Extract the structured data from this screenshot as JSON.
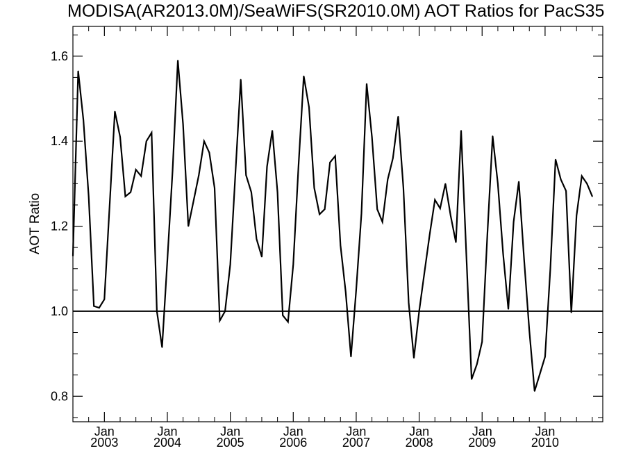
{
  "chart_data": {
    "type": "line",
    "title": "MODISA(AR2013.0M)/SeaWiFS(SR2010.0M)  AOT Ratios for PacS35",
    "xlabel": "",
    "ylabel": "AOT Ratio",
    "xlim": [
      "2002-07",
      "2010-12"
    ],
    "ylim": [
      0.74,
      1.67
    ],
    "y_ticks": [
      0.8,
      1.0,
      1.2,
      1.4,
      1.6
    ],
    "y_tick_labels": [
      "0.8",
      "1.0",
      "1.2",
      "1.4",
      "1.6"
    ],
    "x_tick_labels": [
      {
        "month": "Jan",
        "year": "2003",
        "date": "2003-01"
      },
      {
        "month": "Jan",
        "year": "2004",
        "date": "2004-01"
      },
      {
        "month": "Jan",
        "year": "2005",
        "date": "2005-01"
      },
      {
        "month": "Jan",
        "year": "2006",
        "date": "2006-01"
      },
      {
        "month": "Jan",
        "year": "2007",
        "date": "2007-01"
      },
      {
        "month": "Jan",
        "year": "2008",
        "date": "2008-01"
      },
      {
        "month": "Jan",
        "year": "2009",
        "date": "2009-01"
      },
      {
        "month": "Jan",
        "year": "2010",
        "date": "2010-01"
      }
    ],
    "reference_line": 1.0,
    "grid": false,
    "series": [
      {
        "color": "#000000",
        "points": [
          [
            "2002-07",
            1.13
          ],
          [
            "2002-08",
            1.565
          ],
          [
            "2002-09",
            1.45
          ],
          [
            "2002-10",
            1.27
          ],
          [
            "2002-11",
            1.012
          ],
          [
            "2002-12",
            1.008
          ],
          [
            "2003-01",
            1.028
          ],
          [
            "2003-02",
            1.25
          ],
          [
            "2003-03",
            1.47
          ],
          [
            "2003-04",
            1.41
          ],
          [
            "2003-05",
            1.27
          ],
          [
            "2003-06",
            1.28
          ],
          [
            "2003-07",
            1.333
          ],
          [
            "2003-08",
            1.318
          ],
          [
            "2003-09",
            1.4
          ],
          [
            "2003-10",
            1.42
          ],
          [
            "2003-11",
            1.0
          ],
          [
            "2003-12",
            0.915
          ],
          [
            "2004-01",
            1.12
          ],
          [
            "2004-02",
            1.33
          ],
          [
            "2004-03",
            1.59
          ],
          [
            "2004-04",
            1.44
          ],
          [
            "2004-05",
            1.2
          ],
          [
            "2004-06",
            1.26
          ],
          [
            "2004-07",
            1.32
          ],
          [
            "2004-08",
            1.4
          ],
          [
            "2004-09",
            1.373
          ],
          [
            "2004-10",
            1.29
          ],
          [
            "2004-11",
            0.978
          ],
          [
            "2004-12",
            1.0
          ],
          [
            "2005-01",
            1.11
          ],
          [
            "2005-02",
            1.33
          ],
          [
            "2005-03",
            1.545
          ],
          [
            "2005-04",
            1.32
          ],
          [
            "2005-05",
            1.28
          ],
          [
            "2005-06",
            1.17
          ],
          [
            "2005-07",
            1.128
          ],
          [
            "2005-08",
            1.34
          ],
          [
            "2005-09",
            1.425
          ],
          [
            "2005-10",
            1.28
          ],
          [
            "2005-11",
            0.99
          ],
          [
            "2005-12",
            0.975
          ],
          [
            "2006-01",
            1.11
          ],
          [
            "2006-02",
            1.34
          ],
          [
            "2006-03",
            1.553
          ],
          [
            "2006-04",
            1.48
          ],
          [
            "2006-05",
            1.29
          ],
          [
            "2006-06",
            1.228
          ],
          [
            "2006-07",
            1.24
          ],
          [
            "2006-08",
            1.35
          ],
          [
            "2006-09",
            1.365
          ],
          [
            "2006-10",
            1.155
          ],
          [
            "2006-11",
            1.045
          ],
          [
            "2006-12",
            0.893
          ],
          [
            "2007-01",
            1.05
          ],
          [
            "2007-02",
            1.23
          ],
          [
            "2007-03",
            1.535
          ],
          [
            "2007-04",
            1.41
          ],
          [
            "2007-05",
            1.24
          ],
          [
            "2007-06",
            1.21
          ],
          [
            "2007-07",
            1.31
          ],
          [
            "2007-08",
            1.36
          ],
          [
            "2007-09",
            1.458
          ],
          [
            "2007-10",
            1.29
          ],
          [
            "2007-11",
            1.02
          ],
          [
            "2007-12",
            0.89
          ],
          [
            "2008-01",
            1.0
          ],
          [
            "2008-02",
            1.09
          ],
          [
            "2008-03",
            1.18
          ],
          [
            "2008-04",
            1.262
          ],
          [
            "2008-05",
            1.242
          ],
          [
            "2008-06",
            1.3
          ],
          [
            "2008-07",
            1.225
          ],
          [
            "2008-08",
            1.162
          ],
          [
            "2008-09",
            1.425
          ],
          [
            "2008-10",
            1.13
          ],
          [
            "2008-11",
            0.84
          ],
          [
            "2008-12",
            0.875
          ],
          [
            "2009-01",
            0.928
          ],
          [
            "2009-02",
            1.18
          ],
          [
            "2009-03",
            1.412
          ],
          [
            "2009-04",
            1.3
          ],
          [
            "2009-05",
            1.135
          ],
          [
            "2009-06",
            1.005
          ],
          [
            "2009-07",
            1.21
          ],
          [
            "2009-08",
            1.305
          ],
          [
            "2009-09",
            1.122
          ],
          [
            "2009-10",
            0.955
          ],
          [
            "2009-11",
            0.812
          ],
          [
            "2009-12",
            0.852
          ],
          [
            "2010-01",
            0.893
          ],
          [
            "2010-02",
            1.1
          ],
          [
            "2010-03",
            1.357
          ],
          [
            "2010-04",
            1.31
          ],
          [
            "2010-05",
            1.283
          ],
          [
            "2010-06",
            0.997
          ],
          [
            "2010-07",
            1.225
          ],
          [
            "2010-08",
            1.318
          ],
          [
            "2010-09",
            1.3
          ],
          [
            "2010-10",
            1.27
          ]
        ]
      }
    ]
  }
}
